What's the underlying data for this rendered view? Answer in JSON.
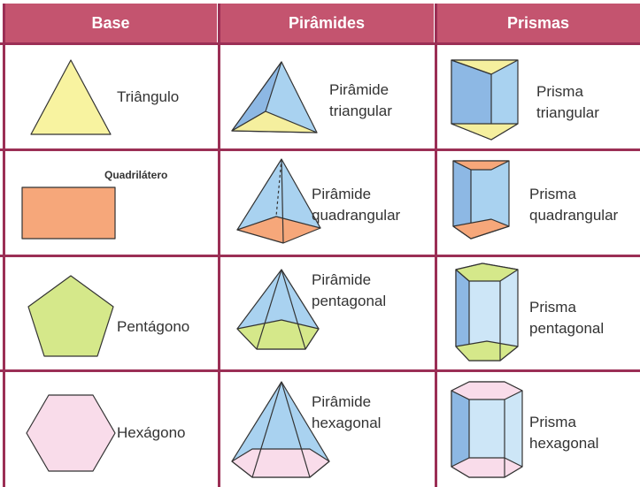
{
  "table": {
    "header": [
      "Base",
      "Pirâmides",
      "Prismas"
    ],
    "rows": [
      [
        "Triângulo",
        "Pirâmide triangular",
        "Prisma triangular"
      ],
      [
        "Quadrilátero",
        "Pirâmide quadrangular",
        "Prisma quadrangular"
      ],
      [
        "Pentágono",
        "Pirâmide pentagonal",
        "Prisma pentagonal"
      ],
      [
        "Hexágono",
        "Pirâmide hexagonal",
        "Prisma hexagonal"
      ]
    ]
  }
}
